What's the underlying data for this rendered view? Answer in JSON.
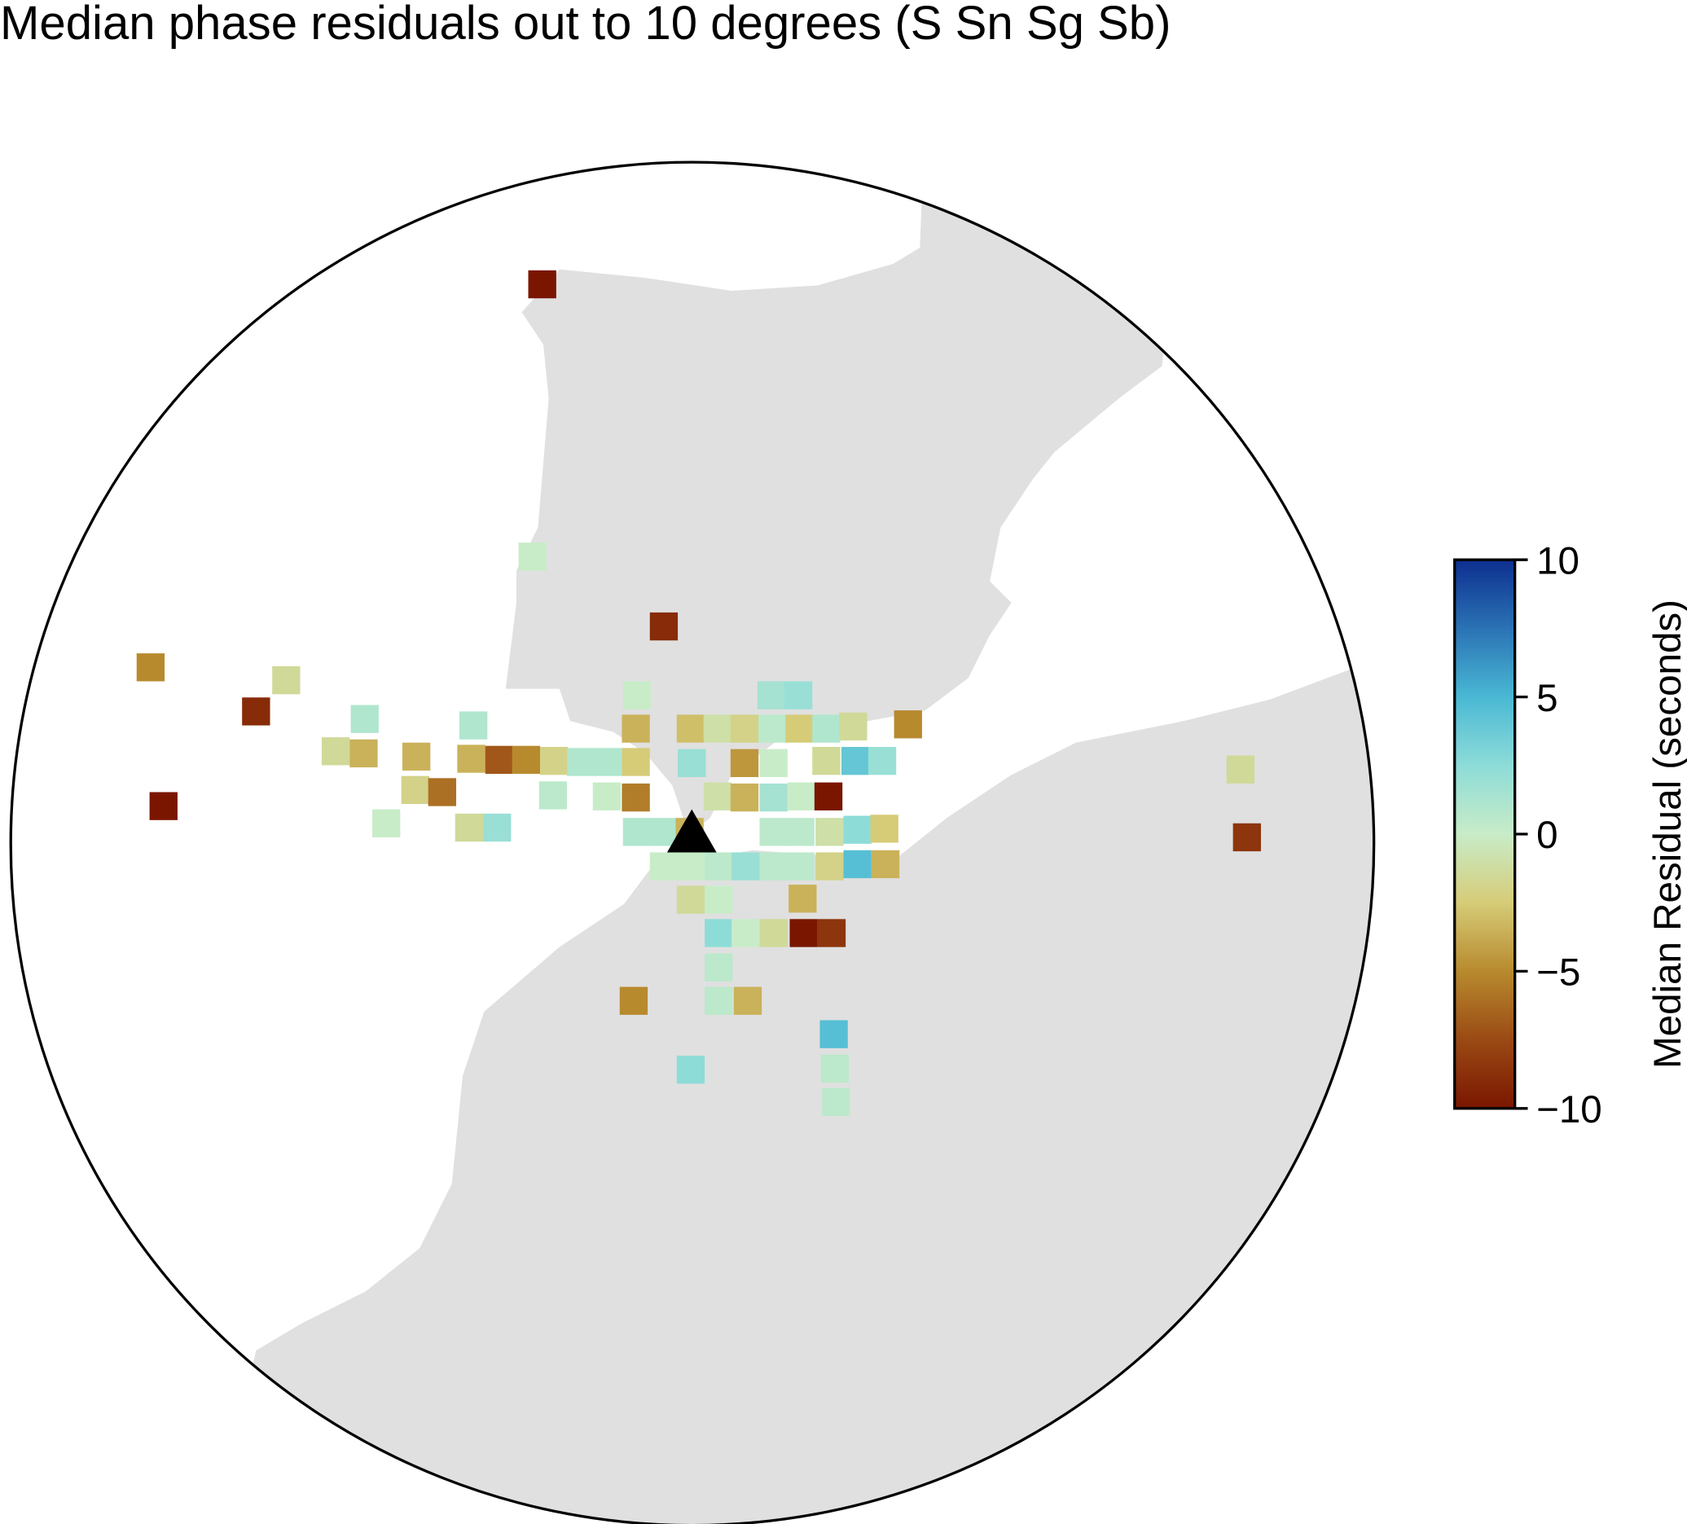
{
  "title": "Median phase residuals out to 10 degrees (S Sn Sg Sb)",
  "colorbar": {
    "label": "Median Residual (seconds)",
    "lim": [
      -10,
      10
    ],
    "ticks": [
      10,
      5,
      0,
      {
        "value": -5,
        "label": "−5"
      },
      {
        "value": -10,
        "label": "−10"
      }
    ],
    "colormap": [
      "#7a1600",
      "#9a4a14",
      "#b88a2e",
      "#d6cc78",
      "#c8ecc8",
      "#8ddcd8",
      "#4ab8d4",
      "#2a72b4",
      "#0d2f8f"
    ]
  },
  "cells": [
    -10,
    0,
    -9,
    -5,
    -1.5,
    -9,
    1,
    1,
    -1.5,
    -3.5,
    -3.5,
    -3.5,
    -7,
    -5,
    -2,
    1,
    1,
    -2.5,
    0,
    -3.5,
    -3,
    -1,
    -2,
    1.5,
    2,
    0.5,
    -2.5,
    1,
    -1.5,
    -5,
    2,
    -4.5,
    0,
    -1.5,
    4,
    2,
    -10,
    -2,
    -6,
    0.5,
    0,
    -5.5,
    -1,
    -3.5,
    1.5,
    0,
    -10,
    0,
    -1.5,
    2,
    1,
    1,
    -3.5,
    0.5,
    0.5,
    -1,
    2.5,
    -2.5,
    0,
    0,
    0.5,
    2,
    0.5,
    0.5,
    -2,
    4.5,
    -3.5,
    -1.5,
    0,
    -3.5,
    2.5,
    0,
    -1.5,
    -10,
    -8.5,
    0.5,
    -5,
    0.5,
    -3.5,
    4.5,
    2.5,
    0.5,
    0.5,
    -1.5,
    -8.5
  ]
}
